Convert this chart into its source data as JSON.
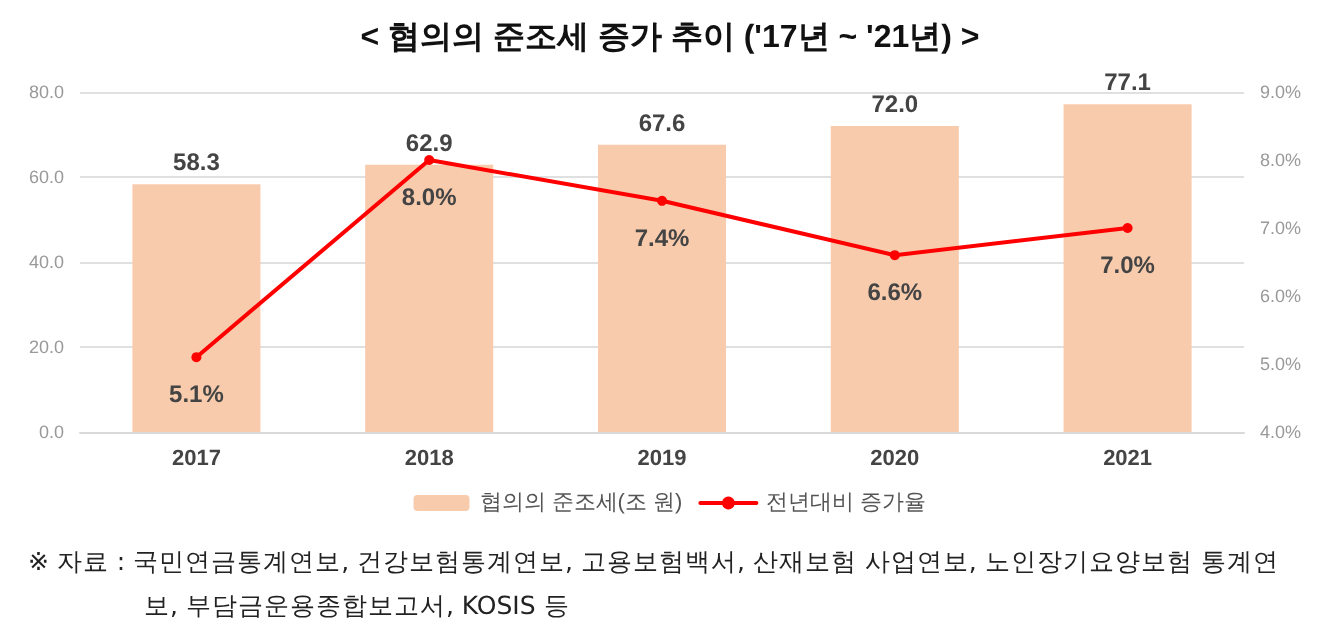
{
  "chart_data": {
    "type": "bar",
    "title": "< 협의의 준조세 증가 추이 ('17년 ~ '21년) >",
    "categories": [
      "2017",
      "2018",
      "2019",
      "2020",
      "2021"
    ],
    "series": [
      {
        "name": "협의의 준조세(조 원)",
        "color": "#f8cbad",
        "values": [
          58.3,
          62.9,
          67.6,
          72.0,
          77.1
        ],
        "value_labels": [
          "58.3",
          "62.9",
          "67.6",
          "72.0",
          "77.1"
        ]
      },
      {
        "name": "전년대비 증가율",
        "type": "line",
        "axis": "y2",
        "color": "#ff0000",
        "values": [
          5.1,
          8.0,
          7.4,
          6.6,
          7.0
        ],
        "value_labels": [
          "5.1%",
          "8.0%",
          "7.4%",
          "6.6%",
          "7.0%"
        ]
      }
    ],
    "ylim": [
      0,
      80
    ],
    "yticks": [
      {
        "value": 0,
        "label": "0.0"
      },
      {
        "value": 20,
        "label": "20.0"
      },
      {
        "value": 40,
        "label": "40.0"
      },
      {
        "value": 60,
        "label": "60.0"
      },
      {
        "value": 80,
        "label": "80.0"
      }
    ],
    "y2lim": [
      4,
      9
    ],
    "y2ticks": [
      {
        "value": 4,
        "label": "4.0%"
      },
      {
        "value": 5,
        "label": "5.0%"
      },
      {
        "value": 6,
        "label": "6.0%"
      },
      {
        "value": 7,
        "label": "7.0%"
      },
      {
        "value": 8,
        "label": "8.0%"
      },
      {
        "value": 9,
        "label": "9.0%"
      }
    ],
    "grid": "y",
    "legend": "bottom",
    "marker": "circle",
    "line_style": "solid",
    "annotations": [
      "※ 자료 : 국민연금통계연보, 건강보험통계연보, 고용보험백서, 산재보험 사업연보, 노인장기요양보험 통계연보, 부담금운용종합보고서, KOSIS 등"
    ]
  }
}
